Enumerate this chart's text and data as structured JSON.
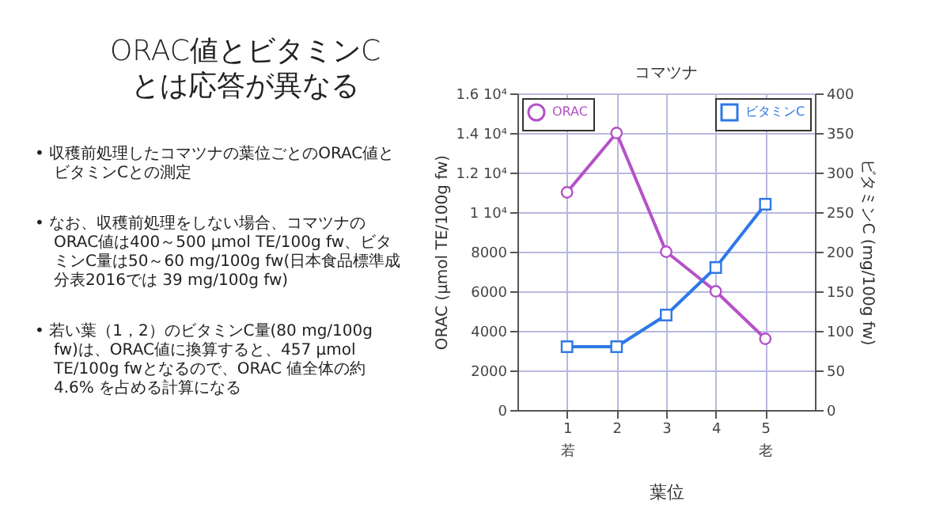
{
  "chart_data": {
    "type": "line",
    "title": "コマツナ",
    "xlabel": "葉位",
    "ylabel": "ORAC (μmol TE/100g fw)",
    "y2label": "ビタミンC (mg/100g fw)",
    "x": [
      1,
      2,
      3,
      4,
      5
    ],
    "xlim": [
      0,
      6
    ],
    "xticks": [
      {
        "value": 1,
        "label": "1\n若"
      },
      2,
      3,
      4,
      {
        "value": 5,
        "label": "5\n老"
      }
    ],
    "ylim": [
      0,
      16000
    ],
    "yticks": [
      0,
      2000,
      4000,
      6000,
      8000,
      {
        "value": 10000,
        "label": "1 10⁴"
      },
      {
        "value": 12000,
        "label": "1.2 10⁴"
      },
      {
        "value": 14000,
        "label": "1.4 10⁴"
      },
      {
        "value": 16000,
        "label": "1.6 10⁴"
      }
    ],
    "y2lim": [
      0,
      400
    ],
    "y2ticks": [
      0,
      50,
      100,
      150,
      200,
      250,
      300,
      350,
      400
    ],
    "series": [
      {
        "name": "ORAC",
        "color": "#b452c8",
        "marker": "circle",
        "values": [
          11000,
          14000,
          8000,
          6000,
          3600
        ]
      },
      {
        "name": "ビタミンC",
        "color": "#2f78e6",
        "marker": "square",
        "axis": "y2",
        "values": [
          80,
          80,
          120,
          180,
          260
        ]
      }
    ],
    "grid": true,
    "legend": "top",
    "line_style": "solid",
    "annotations": [
      "ORAC値とビタミンC\nとは応答が異なる",
      "• 収穫前処理したコマツナの葉位ごとのORAC値とビタミンCとの測定",
      "• なお、収穫前処理をしない場合、コマツナのORAC値は400～500 μmol TE/100g fw、ビタミンC量は50～60 mg/100g fw(日本食品標準成分表2016では 39 mg/100g fw)",
      "• 若い葉（1，2）のビタミンC量(80 mg/100g fw)は、ORAC値に換算すると、457 μmol TE/100g fwとなるので、ORAC 値全体の約4.6% を占める計算になる"
    ]
  }
}
